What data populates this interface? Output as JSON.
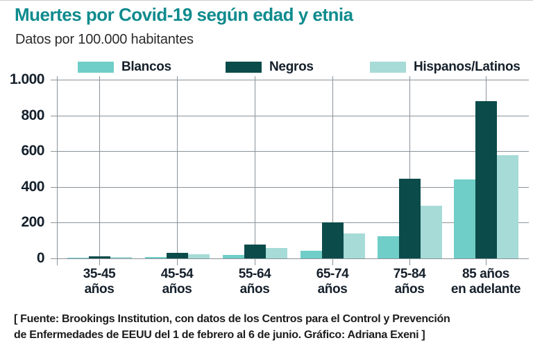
{
  "header": {
    "title": "Muertes por Covid-19 según edad y etnia",
    "subtitle": "Datos por 100.000 habitantes"
  },
  "colors": {
    "title_teal": "#0f8b8d",
    "blancos": "#6fcec7",
    "negros": "#0b4b4a",
    "hispanos_latinos": "#a6dbd7",
    "gridline": "#8b9299",
    "axis_text": "#15202b"
  },
  "chart_data": {
    "type": "bar",
    "title": "Muertes por Covid-19 según edad y etnia",
    "subtitle": "Datos por 100.000 habitantes",
    "unit": "muertes por 100.000 habitantes",
    "categories": [
      "35-45 años",
      "45-54 años",
      "55-64 años",
      "65-74 años",
      "75-84 años",
      "85 años en adelante"
    ],
    "category_display": [
      "35-45\naños",
      "45-54\naños",
      "55-64\naños",
      "65-74\naños",
      "75-84\naños",
      "85 años\nen adelante"
    ],
    "series": [
      {
        "name": "Blancos",
        "color": "#6fcec7",
        "values": [
          2,
          7,
          18,
          43,
          123,
          440
        ]
      },
      {
        "name": "Negros",
        "color": "#0b4b4a",
        "values": [
          11,
          31,
          76,
          202,
          446,
          881
        ]
      },
      {
        "name": "Hispanos/Latinos",
        "color": "#a6dbd7",
        "values": [
          8,
          24,
          59,
          140,
          294,
          576
        ]
      }
    ],
    "ylim": [
      0,
      1000
    ],
    "ytick_values": [
      0,
      200,
      400,
      600,
      800,
      1000
    ],
    "ytick_labels": [
      "0",
      "200",
      "400",
      "600",
      "800",
      "1.000"
    ],
    "grid": true,
    "legend_position": "top"
  },
  "footer": {
    "source": "[ Fuente: Brookings Institution, con datos de los Centros para el Control y Prevención\nde Enfermedades de EEUU del 1 de febrero al 6 de junio. Gráfico: Adriana Exeni ]"
  }
}
